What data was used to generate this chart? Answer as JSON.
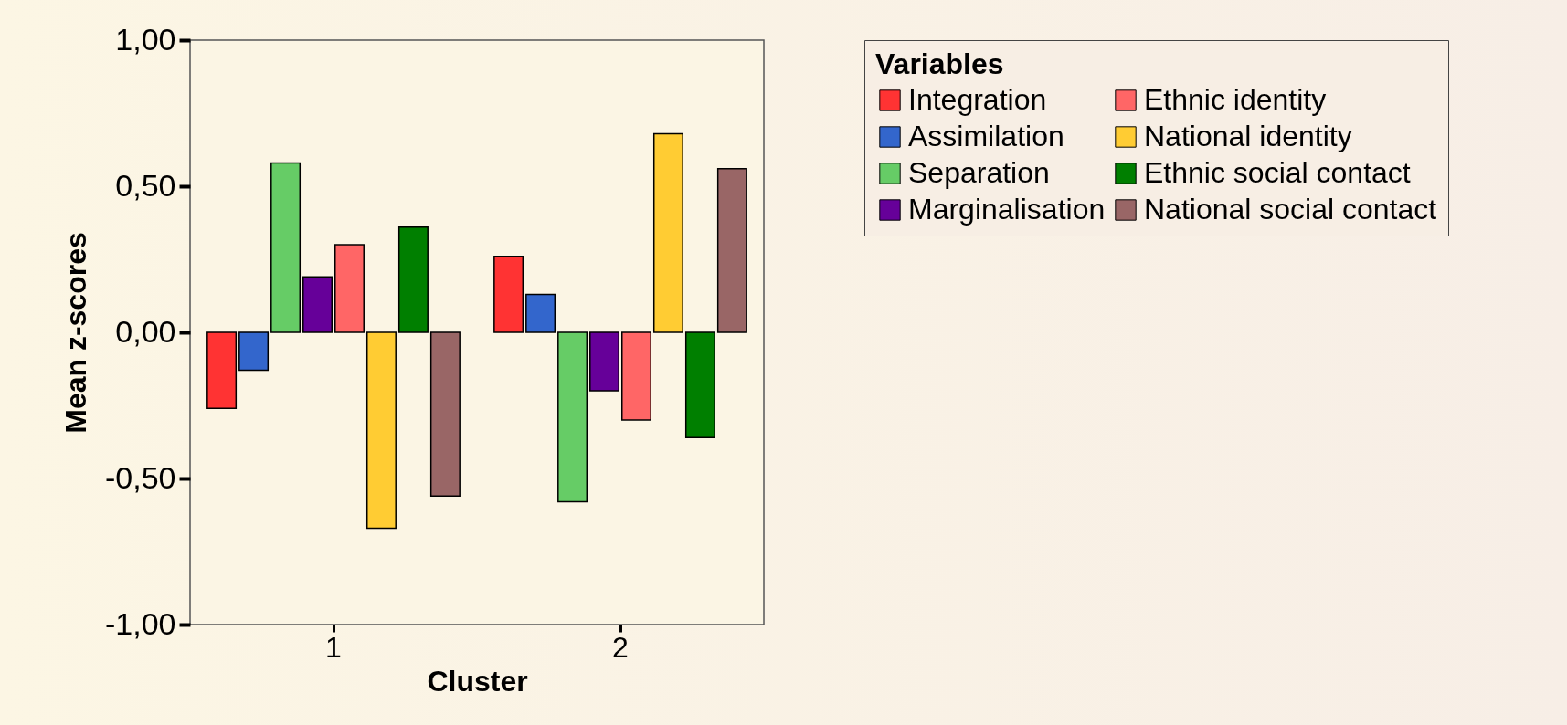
{
  "chart_data": {
    "type": "bar",
    "xlabel": "Cluster",
    "ylabel": "Mean z-scores",
    "legend_title": "Variables",
    "categories": [
      "1",
      "2"
    ],
    "series": [
      {
        "name": "Integration",
        "color": "#ff3333",
        "values": [
          -0.26,
          0.26
        ]
      },
      {
        "name": "Assimilation",
        "color": "#3366cc",
        "values": [
          -0.13,
          0.13
        ]
      },
      {
        "name": "Separation",
        "color": "#66cc66",
        "values": [
          0.58,
          -0.58
        ]
      },
      {
        "name": "Marginalisation",
        "color": "#660099",
        "values": [
          0.19,
          -0.2
        ]
      },
      {
        "name": "Ethnic identity",
        "color": "#ff6666",
        "values": [
          0.3,
          -0.3
        ]
      },
      {
        "name": "National identity",
        "color": "#ffcc33",
        "values": [
          -0.67,
          0.68
        ]
      },
      {
        "name": "Ethnic social contact",
        "color": "#007f00",
        "values": [
          0.36,
          -0.36
        ]
      },
      {
        "name": "National social contact",
        "color": "#996666",
        "values": [
          -0.56,
          0.56
        ]
      }
    ],
    "ylim": [
      -1,
      1
    ],
    "yticks": [
      {
        "value": -1,
        "label": "-1,00"
      },
      {
        "value": -0.5,
        "label": "-0,50"
      },
      {
        "value": 0,
        "label": "0,00"
      },
      {
        "value": 0.5,
        "label": "0,50"
      },
      {
        "value": 1,
        "label": "1,00"
      }
    ],
    "grid": false,
    "legend": "top right"
  }
}
